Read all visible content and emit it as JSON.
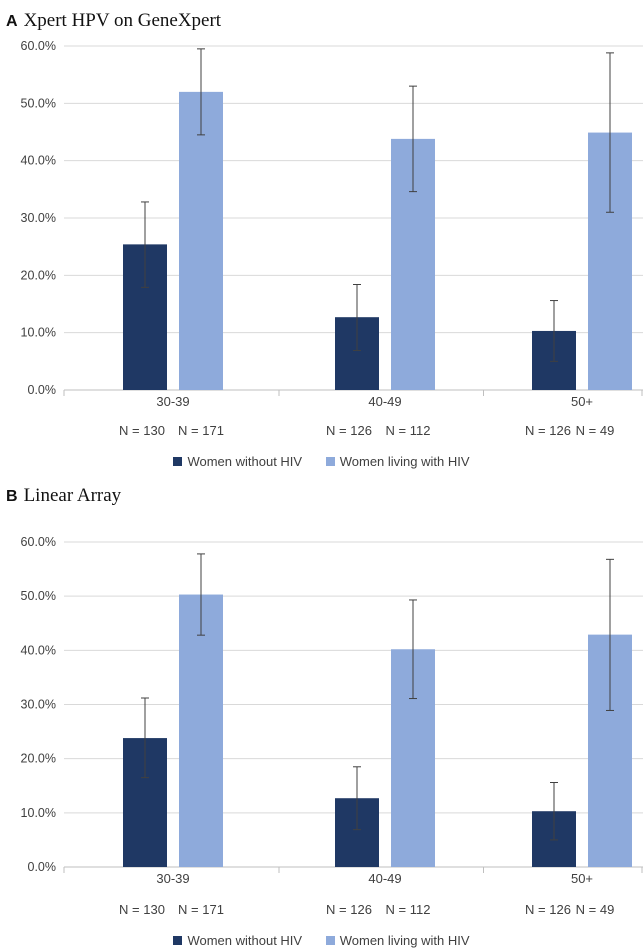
{
  "colors": {
    "without_hiv": "#1f3864",
    "with_hiv": "#8eaadb",
    "grid": "#d9d9d9",
    "axis": "#bfbfbf",
    "error_bar": "#404040"
  },
  "chart_data": [
    {
      "type": "bar",
      "panel_letter": "A",
      "title": "Xpert HPV on GeneXpert",
      "categories": [
        "30-39",
        "40-49",
        "50+"
      ],
      "n_labels": [
        [
          "N = 130",
          "N = 171"
        ],
        [
          "N = 126",
          "N = 112"
        ],
        [
          "N = 126",
          "N = 49"
        ]
      ],
      "y_ticks": [
        "0.0%",
        "10.0%",
        "20.0%",
        "30.0%",
        "40.0%",
        "50.0%",
        "60.0%"
      ],
      "ylim": [
        0,
        60
      ],
      "grid": true,
      "legend_position": "bottom",
      "series": [
        {
          "name": "Women without HIV",
          "color": "#1f3864",
          "values": [
            25.4,
            12.7,
            10.3
          ],
          "error_low": [
            17.9,
            6.9,
            5.0
          ],
          "error_high": [
            32.8,
            18.4,
            15.6
          ]
        },
        {
          "name": "Women living with HIV",
          "color": "#8eaadb",
          "values": [
            52.0,
            43.8,
            44.9
          ],
          "error_low": [
            44.5,
            34.6,
            31.0
          ],
          "error_high": [
            59.5,
            53.0,
            58.8
          ]
        }
      ]
    },
    {
      "type": "bar",
      "panel_letter": "B",
      "title": "Linear Array",
      "categories": [
        "30-39",
        "40-49",
        "50+"
      ],
      "n_labels": [
        [
          "N = 130",
          "N = 171"
        ],
        [
          "N = 126",
          "N = 112"
        ],
        [
          "N = 126",
          "N = 49"
        ]
      ],
      "y_ticks": [
        "0.0%",
        "10.0%",
        "20.0%",
        "30.0%",
        "40.0%",
        "50.0%",
        "60.0%"
      ],
      "ylim": [
        0,
        60
      ],
      "grid": true,
      "legend_position": "bottom",
      "series": [
        {
          "name": "Women without HIV",
          "color": "#1f3864",
          "values": [
            23.8,
            12.7,
            10.3
          ],
          "error_low": [
            16.5,
            6.9,
            5.0
          ],
          "error_high": [
            31.2,
            18.5,
            15.6
          ]
        },
        {
          "name": "Women living with HIV",
          "color": "#8eaadb",
          "values": [
            50.3,
            40.2,
            42.9
          ],
          "error_low": [
            42.8,
            31.1,
            28.9
          ],
          "error_high": [
            57.8,
            49.3,
            56.8
          ]
        }
      ]
    }
  ]
}
